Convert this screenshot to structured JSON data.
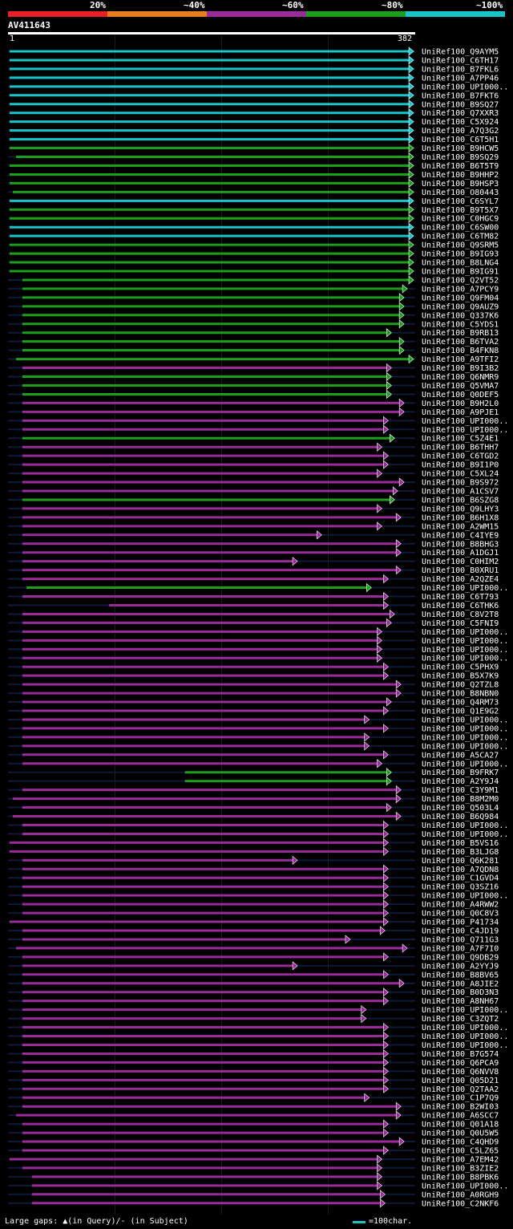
{
  "header": {
    "percent_labels": [
      "20%",
      "~40%",
      "~60%",
      "~80%",
      "~100%"
    ],
    "colors": [
      "#e8202a",
      "#e87f1c",
      "#9b2a9b",
      "#1ca01c",
      "#19c5c9"
    ],
    "query_id": "AV411643",
    "query_start": "1",
    "query_end": "382"
  },
  "footer": {
    "legend_text": "Large gaps: ▲(in Query)/- (in Subject)",
    "scale_text": "=100char."
  },
  "hits": [
    {
      "name": "UniRef100_Q9AYM5",
      "start": 1,
      "end": 382,
      "color": "cyan"
    },
    {
      "name": "UniRef100_C6TH17",
      "start": 1,
      "end": 382,
      "color": "cyan"
    },
    {
      "name": "UniRef100_B7FKL6",
      "start": 1,
      "end": 382,
      "color": "cyan"
    },
    {
      "name": "UniRef100_A7PP46",
      "start": 1,
      "end": 382,
      "color": "cyan"
    },
    {
      "name": "UniRef100_UPI000..",
      "start": 1,
      "end": 382,
      "color": "cyan"
    },
    {
      "name": "UniRef100_B7FKT6",
      "start": 1,
      "end": 382,
      "color": "cyan"
    },
    {
      "name": "UniRef100_B9SQ27",
      "start": 1,
      "end": 382,
      "color": "cyan"
    },
    {
      "name": "UniRef100_Q7XXR3",
      "start": 1,
      "end": 382,
      "color": "cyan"
    },
    {
      "name": "UniRef100_C5X924",
      "start": 1,
      "end": 382,
      "color": "cyan"
    },
    {
      "name": "UniRef100_A7Q3G2",
      "start": 1,
      "end": 382,
      "color": "cyan"
    },
    {
      "name": "UniRef100_C6T5H1",
      "start": 1,
      "end": 382,
      "color": "cyan"
    },
    {
      "name": "UniRef100_B9HCW5",
      "start": 1,
      "end": 382,
      "color": "green"
    },
    {
      "name": "UniRef100_B9SQ29",
      "start": 7,
      "end": 382,
      "color": "green"
    },
    {
      "name": "UniRef100_B6T5T9",
      "start": 1,
      "end": 382,
      "color": "green"
    },
    {
      "name": "UniRef100_B9HHP2",
      "start": 1,
      "end": 382,
      "color": "green"
    },
    {
      "name": "UniRef100_B9HSP3",
      "start": 1,
      "end": 382,
      "color": "green"
    },
    {
      "name": "UniRef100_O80443",
      "start": 4,
      "end": 382,
      "color": "green"
    },
    {
      "name": "UniRef100_C6SYL7",
      "start": 1,
      "end": 382,
      "color": "cyan"
    },
    {
      "name": "UniRef100_B9T5X7",
      "start": 1,
      "end": 382,
      "color": "green"
    },
    {
      "name": "UniRef100_C0HGC9",
      "start": 1,
      "end": 382,
      "color": "green"
    },
    {
      "name": "UniRef100_C6SW00",
      "start": 1,
      "end": 382,
      "color": "cyan"
    },
    {
      "name": "UniRef100_C6TM82",
      "start": 1,
      "end": 382,
      "color": "cyan"
    },
    {
      "name": "UniRef100_Q9SRM5",
      "start": 1,
      "end": 382,
      "color": "green"
    },
    {
      "name": "UniRef100_B9IG93",
      "start": 1,
      "end": 382,
      "color": "green"
    },
    {
      "name": "UniRef100_B8LNG4",
      "start": 1,
      "end": 382,
      "color": "green"
    },
    {
      "name": "UniRef100_B9IG91",
      "start": 1,
      "end": 382,
      "color": "green"
    },
    {
      "name": "UniRef100_Q2VT52",
      "start": 13,
      "end": 382,
      "color": "green"
    },
    {
      "name": "UniRef100_A7PCY9",
      "start": 13,
      "end": 376,
      "color": "green"
    },
    {
      "name": "UniRef100_Q9FM04",
      "start": 13,
      "end": 373,
      "color": "green"
    },
    {
      "name": "UniRef100_Q9AUZ9",
      "start": 13,
      "end": 373,
      "color": "green"
    },
    {
      "name": "UniRef100_Q337K6",
      "start": 13,
      "end": 373,
      "color": "green"
    },
    {
      "name": "UniRef100_C5YDS1",
      "start": 13,
      "end": 373,
      "color": "green"
    },
    {
      "name": "UniRef100_B9RB13",
      "start": 13,
      "end": 361,
      "color": "green"
    },
    {
      "name": "UniRef100_B6TVA2",
      "start": 13,
      "end": 373,
      "color": "green"
    },
    {
      "name": "UniRef100_B4FKN8",
      "start": 13,
      "end": 373,
      "color": "green"
    },
    {
      "name": "UniRef100_A9TFI2",
      "start": 7,
      "end": 382,
      "color": "green"
    },
    {
      "name": "UniRef100_B9I3B2",
      "start": 13,
      "end": 361,
      "color": "purple"
    },
    {
      "name": "UniRef100_Q6NMR9",
      "start": 13,
      "end": 361,
      "color": "green"
    },
    {
      "name": "UniRef100_Q5VMA7",
      "start": 13,
      "end": 361,
      "color": "green"
    },
    {
      "name": "UniRef100_Q0DEF5",
      "start": 13,
      "end": 361,
      "color": "green"
    },
    {
      "name": "UniRef100_B9H2L0",
      "start": 13,
      "end": 373,
      "color": "purple"
    },
    {
      "name": "UniRef100_A9PJE1",
      "start": 13,
      "end": 373,
      "color": "purple"
    },
    {
      "name": "UniRef100_UPI000..",
      "start": 13,
      "end": 358,
      "color": "purple"
    },
    {
      "name": "UniRef100_UPI000..",
      "start": 13,
      "end": 358,
      "color": "purple"
    },
    {
      "name": "UniRef100_C5Z4E1",
      "start": 13,
      "end": 364,
      "color": "green"
    },
    {
      "name": "UniRef100_B6THH7",
      "start": 13,
      "end": 352,
      "color": "purple"
    },
    {
      "name": "UniRef100_C6TGD2",
      "start": 13,
      "end": 358,
      "color": "purple"
    },
    {
      "name": "UniRef100_B9I1P0",
      "start": 13,
      "end": 358,
      "color": "purple"
    },
    {
      "name": "UniRef100_C5XL24",
      "start": 13,
      "end": 352,
      "color": "purple"
    },
    {
      "name": "UniRef100_B9S972",
      "start": 13,
      "end": 373,
      "color": "purple"
    },
    {
      "name": "UniRef100_A1CSV7",
      "start": 13,
      "end": 367,
      "color": "purple"
    },
    {
      "name": "UniRef100_B6SZG8",
      "start": 13,
      "end": 364,
      "color": "green"
    },
    {
      "name": "UniRef100_Q9LHY3",
      "start": 13,
      "end": 352,
      "color": "purple"
    },
    {
      "name": "UniRef100_B6H1X8",
      "start": 13,
      "end": 370,
      "color": "purple"
    },
    {
      "name": "UniRef100_A2WM15",
      "start": 13,
      "end": 352,
      "color": "purple"
    },
    {
      "name": "UniRef100_C4IYE9",
      "start": 13,
      "end": 295,
      "color": "purple"
    },
    {
      "name": "UniRef100_B8BHG3",
      "start": 13,
      "end": 370,
      "color": "purple"
    },
    {
      "name": "UniRef100_A1DGJ1",
      "start": 13,
      "end": 370,
      "color": "purple"
    },
    {
      "name": "UniRef100_C0HIM2",
      "start": 13,
      "end": 272,
      "color": "purple"
    },
    {
      "name": "UniRef100_B0XRU1",
      "start": 13,
      "end": 370,
      "color": "purple"
    },
    {
      "name": "UniRef100_A2QZE4",
      "start": 13,
      "end": 358,
      "color": "purple"
    },
    {
      "name": "UniRef100_UPI000..",
      "start": 17,
      "end": 342,
      "color": "green"
    },
    {
      "name": "UniRef100_C6T793",
      "start": 13,
      "end": 358,
      "color": "purple"
    },
    {
      "name": "UniRef100_C6THK6",
      "start": 95,
      "end": 358,
      "color": "purple"
    },
    {
      "name": "UniRef100_C8V2T8",
      "start": 13,
      "end": 364,
      "color": "purple"
    },
    {
      "name": "UniRef100_C5FNI9",
      "start": 13,
      "end": 361,
      "color": "purple"
    },
    {
      "name": "UniRef100_UPI000..",
      "start": 13,
      "end": 352,
      "color": "purple"
    },
    {
      "name": "UniRef100_UPI000..",
      "start": 13,
      "end": 352,
      "color": "purple"
    },
    {
      "name": "UniRef100_UPI000..",
      "start": 13,
      "end": 352,
      "color": "purple"
    },
    {
      "name": "UniRef100_UPI000..",
      "start": 13,
      "end": 352,
      "color": "purple"
    },
    {
      "name": "UniRef100_C5PHX9",
      "start": 13,
      "end": 358,
      "color": "purple"
    },
    {
      "name": "UniRef100_B5X7K9",
      "start": 13,
      "end": 358,
      "color": "purple"
    },
    {
      "name": "UniRef100_Q2TZL8",
      "start": 13,
      "end": 370,
      "color": "purple"
    },
    {
      "name": "UniRef100_B8NBN0",
      "start": 13,
      "end": 370,
      "color": "purple"
    },
    {
      "name": "UniRef100_Q4RM73",
      "start": 13,
      "end": 361,
      "color": "purple"
    },
    {
      "name": "UniRef100_Q1E9G2",
      "start": 13,
      "end": 358,
      "color": "purple"
    },
    {
      "name": "UniRef100_UPI000..",
      "start": 13,
      "end": 340,
      "color": "purple"
    },
    {
      "name": "UniRef100_UPI000..",
      "start": 13,
      "end": 358,
      "color": "purple"
    },
    {
      "name": "UniRef100_UPI000..",
      "start": 13,
      "end": 340,
      "color": "purple"
    },
    {
      "name": "UniRef100_UPI000..",
      "start": 13,
      "end": 340,
      "color": "purple"
    },
    {
      "name": "UniRef100_A5CA27",
      "start": 13,
      "end": 358,
      "color": "purple"
    },
    {
      "name": "UniRef100_UPI000..",
      "start": 13,
      "end": 352,
      "color": "purple"
    },
    {
      "name": "UniRef100_B9FRK7",
      "start": 167,
      "end": 361,
      "color": "green"
    },
    {
      "name": "UniRef100_A2Y9J4",
      "start": 167,
      "end": 361,
      "color": "green"
    },
    {
      "name": "UniRef100_C3Y9M1",
      "start": 13,
      "end": 370,
      "color": "purple"
    },
    {
      "name": "UniRef100_B8M2M0",
      "start": 4,
      "end": 370,
      "color": "purple"
    },
    {
      "name": "UniRef100_Q503L4",
      "start": 13,
      "end": 361,
      "color": "purple"
    },
    {
      "name": "UniRef100_B6Q984",
      "start": 4,
      "end": 370,
      "color": "purple"
    },
    {
      "name": "UniRef100_UPI000..",
      "start": 13,
      "end": 358,
      "color": "purple"
    },
    {
      "name": "UniRef100_UPI000..",
      "start": 13,
      "end": 358,
      "color": "purple"
    },
    {
      "name": "UniRef100_B5VS16",
      "start": 1,
      "end": 358,
      "color": "purple"
    },
    {
      "name": "UniRef100_B3LJG8",
      "start": 1,
      "end": 358,
      "color": "purple"
    },
    {
      "name": "UniRef100_Q6K281",
      "start": 13,
      "end": 272,
      "color": "purple"
    },
    {
      "name": "UniRef100_A7QDN8",
      "start": 13,
      "end": 358,
      "color": "purple"
    },
    {
      "name": "UniRef100_C1GVD4",
      "start": 13,
      "end": 358,
      "color": "purple"
    },
    {
      "name": "UniRef100_Q3SZ16",
      "start": 13,
      "end": 358,
      "color": "purple"
    },
    {
      "name": "UniRef100_UPI000..",
      "start": 13,
      "end": 358,
      "color": "purple"
    },
    {
      "name": "UniRef100_A4RWW2",
      "start": 13,
      "end": 358,
      "color": "purple"
    },
    {
      "name": "UniRef100_Q0C8V3",
      "start": 13,
      "end": 358,
      "color": "purple"
    },
    {
      "name": "UniRef100_P41734",
      "start": 1,
      "end": 358,
      "color": "purple"
    },
    {
      "name": "UniRef100_C4JD19",
      "start": 13,
      "end": 355,
      "color": "purple"
    },
    {
      "name": "UniRef100_Q711G3",
      "start": 13,
      "end": 322,
      "color": "purple"
    },
    {
      "name": "UniRef100_A7F7I0",
      "start": 7,
      "end": 376,
      "color": "purple"
    },
    {
      "name": "UniRef100_Q9DB29",
      "start": 13,
      "end": 358,
      "color": "purple"
    },
    {
      "name": "UniRef100_A2YYJ9",
      "start": 13,
      "end": 272,
      "color": "purple"
    },
    {
      "name": "UniRef100_B8BV65",
      "start": 13,
      "end": 358,
      "color": "purple"
    },
    {
      "name": "UniRef100_A8JIE2",
      "start": 13,
      "end": 373,
      "color": "purple"
    },
    {
      "name": "UniRef100_B0D3N3",
      "start": 13,
      "end": 358,
      "color": "purple"
    },
    {
      "name": "UniRef100_A8NH67",
      "start": 13,
      "end": 358,
      "color": "purple"
    },
    {
      "name": "UniRef100_UPI000..",
      "start": 13,
      "end": 337,
      "color": "purple"
    },
    {
      "name": "UniRef100_C3ZQT2",
      "start": 13,
      "end": 337,
      "color": "purple"
    },
    {
      "name": "UniRef100_UPI000..",
      "start": 13,
      "end": 358,
      "color": "purple"
    },
    {
      "name": "UniRef100_UPI000..",
      "start": 13,
      "end": 358,
      "color": "purple"
    },
    {
      "name": "UniRef100_UPI000..",
      "start": 13,
      "end": 358,
      "color": "purple"
    },
    {
      "name": "UniRef100_B7G574",
      "start": 13,
      "end": 358,
      "color": "purple"
    },
    {
      "name": "UniRef100_Q6PCA9",
      "start": 13,
      "end": 358,
      "color": "purple"
    },
    {
      "name": "UniRef100_Q6NVV8",
      "start": 13,
      "end": 358,
      "color": "purple"
    },
    {
      "name": "UniRef100_Q05D21",
      "start": 13,
      "end": 358,
      "color": "purple"
    },
    {
      "name": "UniRef100_Q2TAA2",
      "start": 13,
      "end": 358,
      "color": "purple"
    },
    {
      "name": "UniRef100_C1P7Q9",
      "start": 13,
      "end": 340,
      "color": "purple"
    },
    {
      "name": "UniRef100_B2WI03",
      "start": 13,
      "end": 370,
      "color": "purple"
    },
    {
      "name": "UniRef100_A6SCC7",
      "start": 7,
      "end": 370,
      "color": "purple"
    },
    {
      "name": "UniRef100_Q01A18",
      "start": 13,
      "end": 358,
      "color": "purple"
    },
    {
      "name": "UniRef100_Q0U5W5",
      "start": 13,
      "end": 358,
      "color": "purple"
    },
    {
      "name": "UniRef100_C4QHD9",
      "start": 13,
      "end": 373,
      "color": "purple"
    },
    {
      "name": "UniRef100_C5LZ65",
      "start": 13,
      "end": 358,
      "color": "purple"
    },
    {
      "name": "UniRef100_A7EM42",
      "start": 1,
      "end": 352,
      "color": "purple"
    },
    {
      "name": "UniRef100_B3ZIE2",
      "start": 13,
      "end": 352,
      "color": "purple"
    },
    {
      "name": "UniRef100_B8PBK6",
      "start": 22,
      "end": 352,
      "color": "purple"
    },
    {
      "name": "UniRef100_UPI000..",
      "start": 22,
      "end": 352,
      "color": "purple"
    },
    {
      "name": "UniRef100_A0RGH9",
      "start": 22,
      "end": 355,
      "color": "purple"
    },
    {
      "name": "UniRef100_C2NKF6",
      "start": 22,
      "end": 355,
      "color": "purple"
    }
  ]
}
